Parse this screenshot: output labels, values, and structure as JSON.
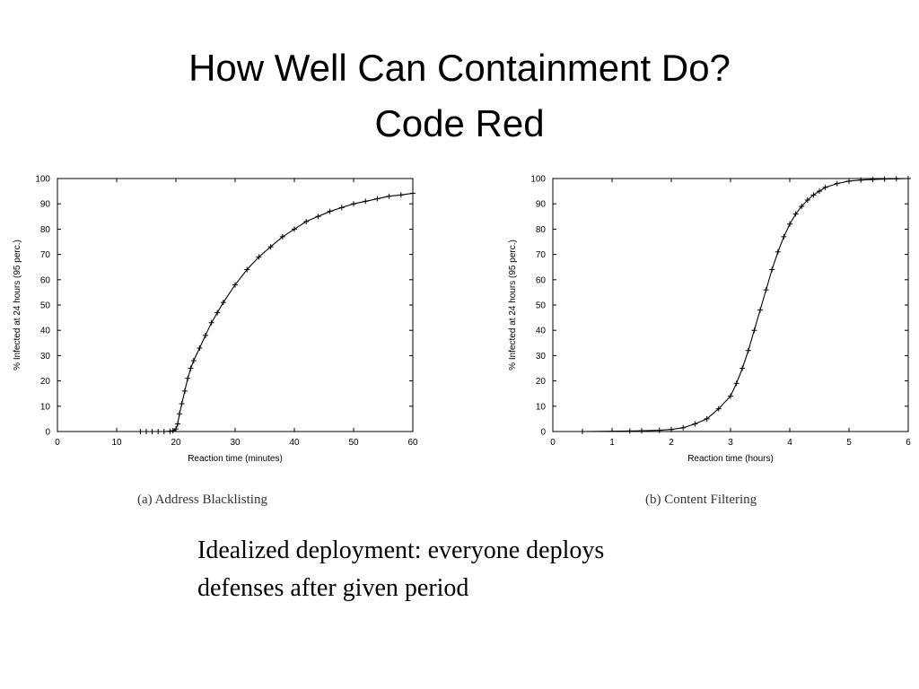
{
  "title": {
    "line1": "How Well Can Containment Do?",
    "line2": "Code Red"
  },
  "note": {
    "line1": "Idealized deployment: everyone deploys",
    "line2": "defenses after given period"
  },
  "chart_data": [
    {
      "type": "line",
      "caption": "(a) Address Blacklisting",
      "xlabel": "Reaction time (minutes)",
      "ylabel": "% Infected at 24 hours (95 perc.)",
      "xlim": [
        0,
        60
      ],
      "ylim": [
        0,
        100
      ],
      "xticks": [
        "0",
        "10",
        "20",
        "30",
        "40",
        "50",
        "60"
      ],
      "yticks": [
        "0",
        "10",
        "20",
        "30",
        "40",
        "50",
        "60",
        "70",
        "80",
        "90",
        "100"
      ],
      "grid": false,
      "markers": "plus",
      "series": [
        {
          "x": [
            14,
            15,
            16,
            17,
            18,
            19,
            19.5,
            20,
            20.3,
            20.6,
            21,
            21.5,
            22,
            22.5,
            23,
            24,
            25,
            26,
            27,
            28,
            30,
            32,
            34,
            36,
            38,
            40,
            42,
            44,
            46,
            48,
            50,
            52,
            54,
            56,
            58,
            60
          ],
          "y": [
            0,
            0,
            0,
            0,
            0,
            0.1,
            0.3,
            1,
            3,
            7,
            11,
            16,
            21,
            25,
            28,
            33,
            38,
            43,
            47,
            51,
            58,
            64,
            69,
            73,
            77,
            80,
            83,
            85,
            87,
            88.5,
            90,
            91,
            92,
            93,
            93.5,
            94.2
          ]
        }
      ]
    },
    {
      "type": "line",
      "caption": "(b) Content Filtering",
      "xlabel": "Reaction time (hours)",
      "ylabel": "% Infected at 24 hours (95 perc.)",
      "xlim": [
        0,
        6
      ],
      "ylim": [
        0,
        100
      ],
      "xticks": [
        "0",
        "1",
        "2",
        "3",
        "4",
        "5",
        "6"
      ],
      "yticks": [
        "0",
        "10",
        "20",
        "30",
        "40",
        "50",
        "60",
        "70",
        "80",
        "90",
        "100"
      ],
      "grid": false,
      "markers": "plus",
      "series": [
        {
          "x": [
            0.5,
            1.3,
            1.5,
            1.8,
            2.0,
            2.2,
            2.4,
            2.6,
            2.8,
            3.0,
            3.1,
            3.2,
            3.3,
            3.4,
            3.5,
            3.6,
            3.7,
            3.8,
            3.9,
            4.0,
            4.1,
            4.2,
            4.3,
            4.4,
            4.5,
            4.6,
            4.8,
            5.0,
            5.2,
            5.4,
            5.6,
            5.8,
            6.0
          ],
          "y": [
            0,
            0.2,
            0.3,
            0.5,
            0.8,
            1.5,
            3,
            5,
            9,
            14,
            19,
            25,
            32,
            40,
            48,
            56,
            64,
            71,
            77,
            82,
            86,
            89,
            91.5,
            93.5,
            95,
            96.5,
            98,
            99,
            99.4,
            99.6,
            99.8,
            99.9,
            100
          ]
        }
      ]
    }
  ]
}
